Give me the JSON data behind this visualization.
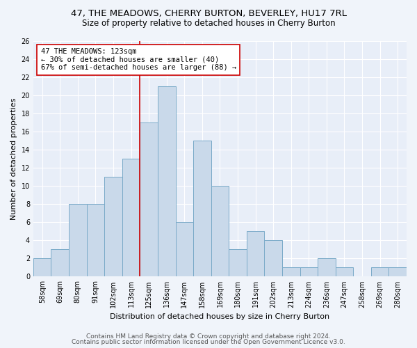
{
  "title": "47, THE MEADOWS, CHERRY BURTON, BEVERLEY, HU17 7RL",
  "subtitle": "Size of property relative to detached houses in Cherry Burton",
  "xlabel": "Distribution of detached houses by size in Cherry Burton",
  "ylabel": "Number of detached properties",
  "footer1": "Contains HM Land Registry data © Crown copyright and database right 2024.",
  "footer2": "Contains public sector information licensed under the Open Government Licence v3.0.",
  "categories": [
    "58sqm",
    "69sqm",
    "80sqm",
    "91sqm",
    "102sqm",
    "113sqm",
    "125sqm",
    "136sqm",
    "147sqm",
    "158sqm",
    "169sqm",
    "180sqm",
    "191sqm",
    "202sqm",
    "213sqm",
    "224sqm",
    "236sqm",
    "247sqm",
    "258sqm",
    "269sqm",
    "280sqm"
  ],
  "values": [
    2,
    3,
    8,
    8,
    11,
    13,
    17,
    21,
    6,
    15,
    10,
    3,
    5,
    4,
    1,
    1,
    2,
    1,
    0,
    1,
    1
  ],
  "bar_color": "#c9d9ea",
  "bar_edge_color": "#7aaac8",
  "vline_color": "#cc0000",
  "annotation_text": "47 THE MEADOWS: 123sqm\n← 30% of detached houses are smaller (40)\n67% of semi-detached houses are larger (88) →",
  "annotation_box_edge_color": "#cc0000",
  "ylim": [
    0,
    26
  ],
  "yticks": [
    0,
    2,
    4,
    6,
    8,
    10,
    12,
    14,
    16,
    18,
    20,
    22,
    24,
    26
  ],
  "bg_color": "#f0f4fa",
  "plot_bg_color": "#e8eef8",
  "grid_color": "#ffffff",
  "title_fontsize": 9.5,
  "subtitle_fontsize": 8.5,
  "xlabel_fontsize": 8,
  "ylabel_fontsize": 8,
  "tick_fontsize": 7,
  "footer_fontsize": 6.5,
  "annotation_fontsize": 7.5
}
